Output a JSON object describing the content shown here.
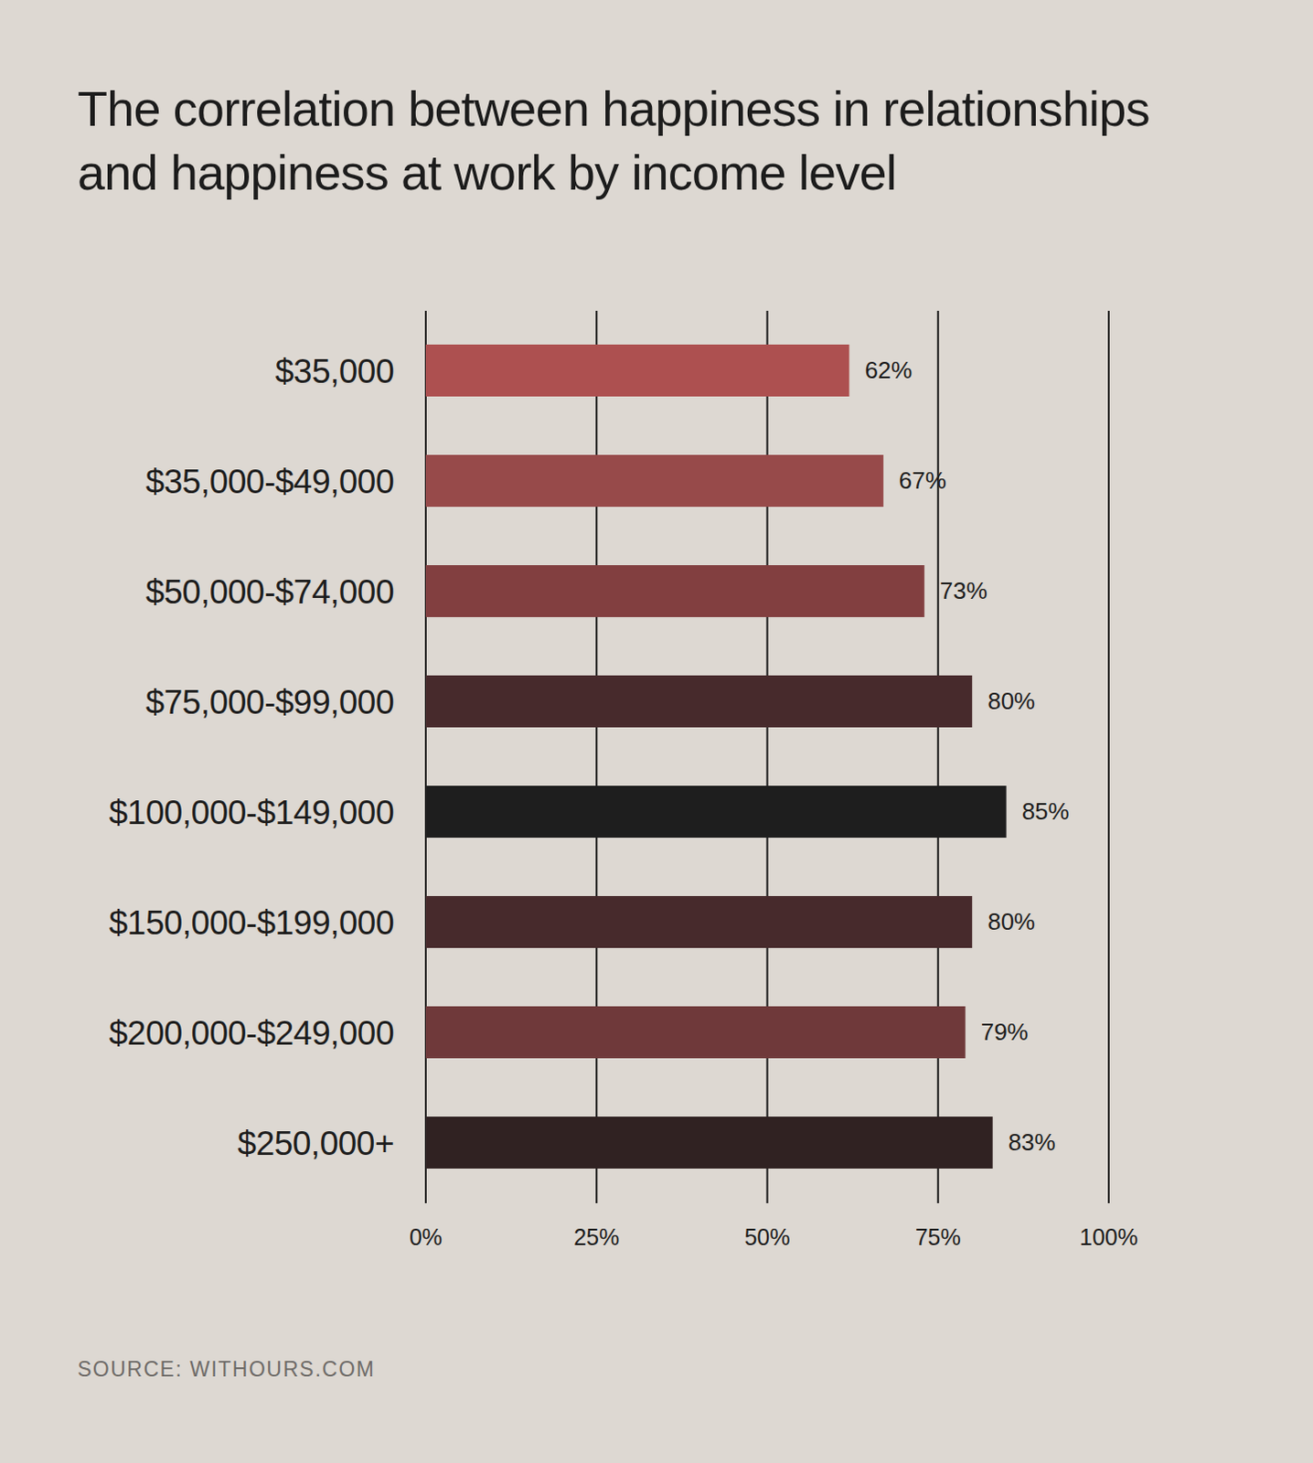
{
  "chart_data": {
    "type": "bar",
    "orientation": "horizontal",
    "title": "The correlation between happiness in relationships and happiness at work by income level",
    "source": "SOURCE: WITHOURS.COM",
    "categories": [
      "$35,000",
      "$35,000-$49,000",
      "$50,000-$74,000",
      "$75,000-$99,000",
      "$100,000-$149,000",
      "$150,000-$199,000",
      "$200,000-$249,000",
      "$250,000+"
    ],
    "values": [
      62,
      67,
      73,
      80,
      85,
      80,
      79,
      83
    ],
    "value_labels": [
      "62%",
      "67%",
      "73%",
      "80%",
      "85%",
      "80%",
      "79%",
      "83%"
    ],
    "colors": [
      "#ad5050",
      "#974a4a",
      "#823f40",
      "#472a2c",
      "#1e1e1e",
      "#472a2c",
      "#6f393a",
      "#302222"
    ],
    "xlim": [
      0,
      100
    ],
    "xticks": [
      {
        "value": 0,
        "label": "0%"
      },
      {
        "value": 25,
        "label": "25%"
      },
      {
        "value": 50,
        "label": "50%"
      },
      {
        "value": 75,
        "label": "75%"
      },
      {
        "value": 100,
        "label": "100%"
      }
    ],
    "grid": true,
    "data_labels": true
  }
}
